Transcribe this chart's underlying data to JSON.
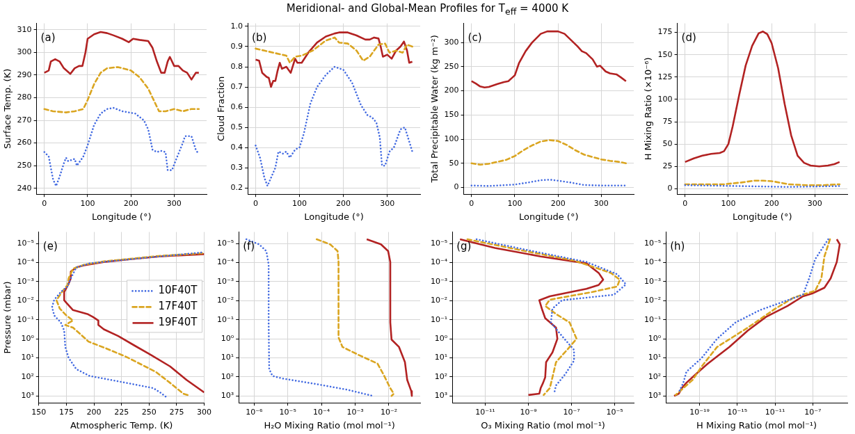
{
  "chart_data": [
    {
      "type": "line",
      "xlabel": "Longitude (°)",
      "ylabel": "Surface Temp. (K)",
      "annotations": [
        "(a)"
      ],
      "xlim": [
        -18,
        375
      ],
      "xticks": [
        0,
        100,
        200,
        300
      ],
      "ylim": [
        237.4,
        312.8
      ],
      "yticks": [
        240,
        250,
        260,
        270,
        280,
        290,
        300,
        310
      ],
      "grid": true,
      "series": [
        {
          "color": "#4169e1",
          "line_style": "dotted",
          "x": [
            0,
            10,
            20,
            27,
            35,
            45,
            50,
            55,
            70,
            75,
            90,
            100,
            115,
            130,
            145,
            160,
            180,
            210,
            230,
            240,
            250,
            260,
            270,
            280,
            285,
            295,
            305,
            320,
            325,
            340,
            350,
            357
          ],
          "values": [
            256,
            254,
            244,
            241,
            245,
            251,
            253.5,
            252,
            253,
            250,
            254,
            259,
            268,
            273,
            275,
            275.5,
            274,
            273,
            270,
            266,
            257,
            256,
            256.5,
            256,
            248,
            248,
            253,
            260,
            263,
            263,
            257,
            255
          ]
        },
        {
          "color": "#daa520",
          "line_style": "dashed",
          "x": [
            0,
            20,
            50,
            70,
            90,
            100,
            115,
            130,
            145,
            170,
            200,
            220,
            240,
            255,
            265,
            280,
            300,
            320,
            340,
            357
          ],
          "values": [
            275,
            274,
            273.5,
            274,
            275,
            279,
            286,
            291,
            293,
            293.5,
            292,
            289,
            284,
            278,
            274,
            274,
            275,
            274,
            275,
            275
          ]
        },
        {
          "color": "#b22222",
          "line_style": "solid",
          "x": [
            0,
            10,
            15,
            25,
            35,
            45,
            60,
            70,
            80,
            88,
            95,
            100,
            115,
            130,
            145,
            160,
            180,
            195,
            205,
            220,
            240,
            250,
            260,
            270,
            278,
            285,
            290,
            300,
            310,
            320,
            330,
            340,
            350,
            357
          ],
          "values": [
            291,
            292,
            296,
            297,
            296,
            293,
            290.5,
            293,
            294,
            294,
            300,
            306,
            308,
            309,
            308.5,
            307.5,
            306,
            304.5,
            306,
            305.5,
            305,
            302,
            296,
            291,
            291,
            296,
            298,
            294,
            294,
            292,
            291,
            288,
            291,
            291
          ]
        }
      ]
    },
    {
      "type": "line",
      "title": "Meridional- and Global-Mean Profiles for T$_{eff}$ = 4000 K",
      "xlabel": "Longitude (°)",
      "ylabel": "Cloud Fraction",
      "annotations": [
        "(b)"
      ],
      "xlim": [
        -18,
        375
      ],
      "xticks": [
        0,
        100,
        200,
        300
      ],
      "ylim": [
        0.169,
        1.015
      ],
      "yticks": [
        {
          "value": 0.2,
          "label": "0.2"
        },
        {
          "value": 0.3,
          "label": "0.3"
        },
        {
          "value": 0.4,
          "label": "0.4"
        },
        {
          "value": 0.5,
          "label": "0.5"
        },
        {
          "value": 0.6,
          "label": "0.6"
        },
        {
          "value": 0.7,
          "label": "0.7"
        },
        {
          "value": 0.8,
          "label": "0.8"
        },
        {
          "value": 0.9,
          "label": "0.9"
        },
        {
          "value": 1,
          "label": "1.0"
        }
      ],
      "grid": true,
      "series": [
        {
          "color": "#4169e1",
          "line_style": "dotted",
          "x": [
            0,
            10,
            20,
            27,
            35,
            45,
            52,
            62,
            70,
            78,
            90,
            100,
            110,
            125,
            140,
            160,
            180,
            200,
            220,
            240,
            255,
            265,
            275,
            283,
            288,
            295,
            305,
            315,
            330,
            340,
            350,
            357
          ],
          "values": [
            0.41,
            0.35,
            0.25,
            0.21,
            0.25,
            0.3,
            0.38,
            0.37,
            0.38,
            0.35,
            0.39,
            0.4,
            0.47,
            0.62,
            0.7,
            0.76,
            0.8,
            0.785,
            0.72,
            0.61,
            0.56,
            0.55,
            0.525,
            0.45,
            0.31,
            0.31,
            0.38,
            0.4,
            0.49,
            0.5,
            0.43,
            0.38
          ]
        },
        {
          "color": "#daa520",
          "line_style": "dashed",
          "x": [
            0,
            20,
            40,
            60,
            70,
            78,
            90,
            105,
            130,
            160,
            180,
            190,
            210,
            230,
            245,
            260,
            280,
            295,
            305,
            320,
            335,
            345,
            357
          ],
          "values": [
            0.89,
            0.88,
            0.87,
            0.86,
            0.855,
            0.82,
            0.85,
            0.855,
            0.88,
            0.93,
            0.945,
            0.92,
            0.915,
            0.88,
            0.83,
            0.85,
            0.91,
            0.915,
            0.87,
            0.88,
            0.87,
            0.91,
            0.9
          ]
        },
        {
          "color": "#b22222",
          "line_style": "solid",
          "x": [
            0,
            8,
            15,
            25,
            30,
            35,
            40,
            45,
            50,
            55,
            60,
            70,
            80,
            90,
            95,
            105,
            120,
            140,
            160,
            180,
            190,
            210,
            230,
            250,
            260,
            270,
            280,
            285,
            290,
            300,
            310,
            320,
            330,
            338,
            345,
            350,
            357
          ],
          "values": [
            0.835,
            0.83,
            0.77,
            0.75,
            0.745,
            0.7,
            0.73,
            0.73,
            0.78,
            0.82,
            0.79,
            0.8,
            0.77,
            0.84,
            0.82,
            0.82,
            0.87,
            0.92,
            0.95,
            0.965,
            0.97,
            0.97,
            0.955,
            0.935,
            0.935,
            0.945,
            0.94,
            0.9,
            0.85,
            0.86,
            0.84,
            0.88,
            0.9,
            0.925,
            0.88,
            0.82,
            0.825
          ]
        }
      ]
    },
    {
      "type": "line",
      "xlabel": "Longitude (°)",
      "ylabel": "Total Precipitable Water (kg m⁻²)",
      "annotations": [
        "(c)"
      ],
      "xlim": [
        -18,
        375
      ],
      "xticks": [
        0,
        100,
        200,
        300
      ],
      "ylim": [
        -14,
        339.6
      ],
      "yticks": [
        0,
        50,
        100,
        150,
        200,
        250,
        300
      ],
      "grid": true,
      "series": [
        {
          "color": "#4169e1",
          "line_style": "dotted",
          "x": [
            0,
            40,
            80,
            100,
            130,
            160,
            180,
            200,
            230,
            260,
            300,
            357
          ],
          "values": [
            4,
            3,
            5,
            6,
            10,
            15,
            16,
            14,
            10,
            5,
            4,
            4
          ]
        },
        {
          "color": "#daa520",
          "line_style": "dashed",
          "x": [
            0,
            20,
            40,
            60,
            80,
            100,
            120,
            140,
            160,
            180,
            200,
            220,
            240,
            260,
            280,
            300,
            320,
            340,
            357
          ],
          "values": [
            50,
            47,
            49,
            53,
            57,
            65,
            77,
            87,
            95,
            98,
            96,
            88,
            77,
            68,
            63,
            58,
            55,
            53,
            50
          ]
        },
        {
          "color": "#b22222",
          "line_style": "solid",
          "x": [
            0,
            10,
            20,
            30,
            40,
            60,
            75,
            85,
            95,
            100,
            110,
            125,
            140,
            160,
            175,
            200,
            215,
            230,
            245,
            255,
            265,
            280,
            290,
            297,
            310,
            320,
            335,
            345,
            357
          ],
          "values": [
            220,
            215,
            209,
            207,
            208,
            214,
            218,
            220,
            228,
            232,
            258,
            282,
            300,
            318,
            323,
            323,
            318,
            305,
            292,
            282,
            278,
            265,
            250,
            252,
            240,
            236,
            234,
            228,
            220
          ]
        }
      ]
    },
    {
      "type": "line",
      "xlabel": "Longitude (°)",
      "ylabel": "H Mixing Ratio (×10⁻⁶)",
      "annotations": [
        "(d)"
      ],
      "xlim": [
        -18,
        375
      ],
      "xticks": [
        0,
        100,
        200,
        300
      ],
      "ylim": [
        -6.1,
        185.1
      ],
      "yticks": [
        0,
        25,
        50,
        75,
        100,
        125,
        150,
        175
      ],
      "grid": true,
      "series": [
        {
          "color": "#4169e1",
          "line_style": "dotted",
          "x": [
            0,
            60,
            120,
            180,
            240,
            300,
            357
          ],
          "values": [
            4,
            3.5,
            3,
            2.5,
            2,
            2.5,
            3
          ]
        },
        {
          "color": "#daa520",
          "line_style": "dashed",
          "x": [
            0,
            50,
            90,
            130,
            160,
            180,
            200,
            240,
            280,
            320,
            357
          ],
          "values": [
            5,
            5,
            5,
            7,
            9,
            9,
            8.5,
            5,
            4,
            4,
            5
          ]
        },
        {
          "color": "#b22222",
          "line_style": "solid",
          "x": [
            0,
            20,
            40,
            60,
            80,
            90,
            100,
            110,
            125,
            140,
            155,
            170,
            180,
            190,
            200,
            215,
            230,
            245,
            260,
            275,
            290,
            310,
            330,
            345,
            357
          ],
          "values": [
            30,
            34,
            37,
            39,
            40,
            42,
            50,
            70,
            105,
            138,
            160,
            174,
            176,
            173,
            163,
            135,
            95,
            60,
            37,
            29,
            26,
            25,
            26,
            27.5,
            30
          ]
        }
      ]
    },
    {
      "type": "line",
      "xlabel": "Atmospheric Temp. (K)",
      "ylabel": "Pressure (mbar)",
      "annotations": [
        "(e)"
      ],
      "log": "y",
      "legend": "center right",
      "xlim": [
        150,
        300
      ],
      "xticks": [
        150,
        175,
        200,
        225,
        250,
        275,
        300
      ],
      "ylim": [
        2300,
        2.5e-06
      ],
      "yticks": [
        {
          "value": 1e-05,
          "label": "10⁻⁵"
        },
        {
          "value": 0.0001,
          "label": "10⁻⁴"
        },
        {
          "value": 0.001,
          "label": "10⁻³"
        },
        {
          "value": 0.01,
          "label": "10⁻²"
        },
        {
          "value": 0.1,
          "label": "10⁻¹"
        },
        {
          "value": 1,
          "label": "10⁰"
        },
        {
          "value": 10,
          "label": "10¹"
        },
        {
          "value": 100,
          "label": "10²"
        },
        {
          "value": 1000,
          "label": "10³"
        }
      ],
      "grid": true,
      "series": [
        {
          "name": "10F40T",
          "color": "#4169e1",
          "line_style": "dotted",
          "x": [
            265,
            260,
            254,
            229,
            209,
            196,
            184,
            177,
            174,
            173,
            170,
            164,
            162,
            164,
            170,
            176,
            179,
            184,
            196,
            234,
            300
          ],
          "values": [
            1070,
            650,
            390,
            204,
            123,
            89,
            39,
            10,
            2.7,
            0.37,
            0.14,
            0.06,
            0.022,
            0.0089,
            0.0035,
            0.0018,
            0.00068,
            0.00018,
            0.00011,
            6.6e-05,
            2.9e-05
          ]
        },
        {
          "name": "17F40T",
          "color": "#daa520",
          "line_style": "dashed",
          "x": [
            285,
            281,
            269,
            256,
            229,
            211,
            195,
            191,
            181,
            174,
            181,
            175,
            169,
            166,
            171,
            176,
            177,
            181,
            191,
            209,
            259,
            300
          ],
          "values": [
            890,
            760,
            204,
            54,
            8.7,
            3.2,
            1.4,
            0.85,
            0.26,
            0.19,
            0.11,
            0.06,
            0.026,
            0.0095,
            0.0035,
            0.0015,
            0.00068,
            0.00021,
            0.00013,
            8.7e-05,
            4.5e-05,
            3.2e-05
          ]
        },
        {
          "name": "19F40T",
          "color": "#b22222",
          "line_style": "solid",
          "x": [
            300,
            284,
            269,
            252,
            237,
            222,
            209,
            204,
            204,
            199,
            194,
            181,
            175,
            173,
            173,
            177,
            179,
            179,
            184,
            191,
            209,
            234,
            259,
            300
          ],
          "values": [
            650,
            145,
            28,
            7.2,
            2.3,
            0.72,
            0.32,
            0.19,
            0.11,
            0.071,
            0.05,
            0.031,
            0.013,
            0.0095,
            0.0035,
            0.0013,
            0.00068,
            0.0003,
            0.00018,
            0.00014,
            9.3e-05,
            6.6e-05,
            4.8e-05,
            3.6e-05
          ]
        }
      ]
    },
    {
      "type": "line",
      "xlabel": "H₂O Mixing Ratio (mol mol⁻¹)",
      "annotations": [
        "(f)"
      ],
      "log": "xy",
      "xlim": [
        3.5e-07,
        0.085
      ],
      "xticks": [
        {
          "value": 1e-06,
          "label": "10⁻⁶"
        },
        {
          "value": 1e-05,
          "label": "10⁻⁵"
        },
        {
          "value": 0.0001,
          "label": "10⁻⁴"
        },
        {
          "value": 0.001,
          "label": "10⁻³"
        },
        {
          "value": 0.01,
          "label": "10⁻²"
        }
      ],
      "ylim": [
        2300,
        2.5e-06
      ],
      "yticks": [
        {
          "value": 1e-05,
          "label": "10⁻⁵"
        },
        {
          "value": 0.0001,
          "label": "10⁻⁴"
        },
        {
          "value": 0.001,
          "label": "10⁻³"
        },
        {
          "value": 0.01,
          "label": "10⁻²"
        },
        {
          "value": 0.1,
          "label": "10⁻¹"
        },
        {
          "value": 1,
          "label": "10⁰"
        },
        {
          "value": 10,
          "label": "10¹"
        },
        {
          "value": 100,
          "label": "10²"
        },
        {
          "value": 1000,
          "label": "10³"
        }
      ],
      "grid": true,
      "series": [
        {
          "color": "#4169e1",
          "line_style": "dotted",
          "x": [
            5.9e-07,
            1.4e-06,
            2.3e-06,
            2.7e-06,
            2.7e-06,
            2.8e-06,
            3.5e-06,
            7.2e-06,
            7.2e-05,
            0.00058,
            0.0034
          ],
          "values": [
            6e-06,
            1.1e-05,
            2.5e-05,
            0.00013,
            0.14,
            39,
            89,
            123,
            240,
            470,
            1000
          ]
        },
        {
          "color": "#daa520",
          "line_style": "dashed",
          "x": [
            7.2e-05,
            0.00018,
            0.0003,
            0.00032,
            0.00032,
            0.00042,
            0.0013,
            0.0046,
            0.0069,
            0.011,
            0.014,
            0.012
          ],
          "values": [
            6e-06,
            1.1e-05,
            2.5e-05,
            9.3e-05,
            0.85,
            2.7,
            7.2,
            20,
            74,
            390,
            760,
            1000
          ]
        },
        {
          "color": "#b22222",
          "line_style": "solid",
          "x": [
            0.0022,
            0.0058,
            0.0095,
            0.011,
            0.011,
            0.012,
            0.02,
            0.03,
            0.035,
            0.046,
            0.048
          ],
          "values": [
            6e-06,
            1.1e-05,
            2.5e-05,
            9.3e-05,
            0.14,
            1.1,
            2.7,
            17,
            145,
            550,
            1000
          ]
        }
      ]
    },
    {
      "type": "line",
      "xlabel": "O₃ Mixing Ratio (mol mol⁻¹)",
      "annotations": [
        "(g)"
      ],
      "log": "xy",
      "xlim": [
        3.3e-13,
        7.6e-05
      ],
      "xticks": [
        {
          "value": 1e-11,
          "label": "10⁻¹¹"
        },
        {
          "value": 1e-09,
          "label": "10⁻⁹"
        },
        {
          "value": 1e-07,
          "label": "10⁻⁷"
        },
        {
          "value": 1e-05,
          "label": "10⁻⁵"
        }
      ],
      "ylim": [
        2300,
        2.5e-06
      ],
      "yticks": [
        {
          "value": 1e-05,
          "label": "10⁻⁵"
        },
        {
          "value": 0.0001,
          "label": "10⁻⁴"
        },
        {
          "value": 0.001,
          "label": "10⁻³"
        },
        {
          "value": 0.01,
          "label": "10⁻²"
        },
        {
          "value": 0.1,
          "label": "10⁻¹"
        },
        {
          "value": 1,
          "label": "10⁰"
        },
        {
          "value": 10,
          "label": "10¹"
        },
        {
          "value": 100,
          "label": "10²"
        },
        {
          "value": 1000,
          "label": "10³"
        }
      ],
      "grid": true,
      "series": [
        {
          "color": "#4169e1",
          "line_style": "dotted",
          "x": [
            4e-12,
            7.2e-10,
            4.9e-07,
            1.3e-05,
            3.3e-05,
            9.1e-06,
            3.6e-08,
            1.3e-08,
            1.1e-08,
            3.6e-08,
            1.3e-07,
            1.3e-07,
            5e-08,
            1.9e-08,
            1.6e-08
          ],
          "values": [
            6e-06,
            2.1e-05,
            9.3e-05,
            0.00041,
            0.0014,
            0.0049,
            0.0095,
            0.026,
            0.14,
            0.72,
            3.8,
            14,
            74,
            280,
            650
          ]
        },
        {
          "color": "#daa520",
          "line_style": "dashed",
          "x": [
            1.5e-12,
            7.2e-10,
            1.3e-07,
            6.6e-06,
            1.7e-05,
            1.3e-05,
            9.3e-07,
            9.8e-09,
            6e-09,
            1.9e-08,
            8.1e-08,
            1.7e-07,
            8.1e-08,
            1.9e-08,
            1.3e-08,
            9.8e-09,
            5.1e-09
          ],
          "values": [
            6e-06,
            2.5e-05,
            7.8e-05,
            0.00035,
            0.00079,
            0.0018,
            0.0035,
            0.0089,
            0.019,
            0.05,
            0.14,
            1,
            2.7,
            17,
            105,
            390,
            890
          ]
        },
        {
          "color": "#b22222",
          "line_style": "solid",
          "x": [
            6.8e-13,
            2.8e-11,
            3.7e-09,
            4.9e-07,
            1.8e-06,
            2.9e-06,
            1.8e-06,
            4.9e-07,
            9.8e-09,
            3.2e-09,
            4.4e-09,
            6e-09,
            1.9e-08,
            2.2e-08,
            1.3e-08,
            6.6e-09,
            6e-09,
            4.8e-09,
            3.7e-09,
            3.2e-09,
            1e-09
          ],
          "values": [
            6e-06,
            1.7e-05,
            4.8e-05,
            0.00011,
            0.00035,
            0.00079,
            0.0015,
            0.0024,
            0.0059,
            0.0095,
            0.031,
            0.083,
            0.26,
            1,
            5.2,
            17,
            105,
            204,
            390,
            760,
            890
          ]
        }
      ]
    },
    {
      "type": "line",
      "xlabel": "H Mixing Ratio (mol mol⁻¹)",
      "annotations": [
        "(h)"
      ],
      "log": "xy",
      "xlim": [
        2.7e-23,
        0.00046
      ],
      "xticks": [
        {
          "value": 1e-19,
          "label": "10⁻¹⁹"
        },
        {
          "value": 1e-15,
          "label": "10⁻¹⁵"
        },
        {
          "value": 1e-11,
          "label": "10⁻¹¹"
        },
        {
          "value": 1e-07,
          "label": "10⁻⁷"
        }
      ],
      "ylim": [
        2300,
        2.5e-06
      ],
      "yticks": [
        {
          "value": 1e-05,
          "label": "10⁻⁵"
        },
        {
          "value": 0.0001,
          "label": "10⁻⁴"
        },
        {
          "value": 0.001,
          "label": "10⁻³"
        },
        {
          "value": 0.01,
          "label": "10⁻²"
        },
        {
          "value": 0.1,
          "label": "10⁻¹"
        },
        {
          "value": 1,
          "label": "10⁰"
        },
        {
          "value": 10,
          "label": "10¹"
        },
        {
          "value": 100,
          "label": "10²"
        },
        {
          "value": 1000,
          "label": "10³"
        }
      ],
      "grid": true,
      "series": [
        {
          "color": "#4169e1",
          "line_style": "dotted",
          "x": [
            4.3e-06,
            1.8e-07,
            4.1e-08,
            9.1e-09,
            2.1e-10,
            2.6e-13,
            6.3e-16,
            7.1e-18,
            1.7e-19,
            4e-21,
            1.9e-21,
            6.2e-22
          ],
          "values": [
            6e-06,
            6.6e-05,
            0.00068,
            0.0049,
            0.0095,
            0.031,
            0.14,
            1,
            10,
            54,
            204,
            650
          ]
        },
        {
          "color": "#daa520",
          "line_style": "dashed",
          "x": [
            6.6e-06,
            1.7e-06,
            8.1e-07,
            1.8e-07,
            9.5e-10,
            1.1e-11,
            1.3e-14,
            7.1e-18,
            1.7e-19,
            1.8e-20,
            1.9e-21,
            2.9e-22
          ],
          "values": [
            6e-06,
            4.8e-05,
            0.00068,
            0.003,
            0.0069,
            0.026,
            0.26,
            2.7,
            28,
            145,
            390,
            890
          ]
        },
        {
          "color": "#b22222",
          "line_style": "solid",
          "x": [
            3.5e-05,
            7.2e-05,
            3.5e-05,
            7.8e-06,
            1.7e-06,
            8.5e-08,
            9.1e-09,
            2.1e-10,
            1.1e-12,
            1.3e-14,
            1.4e-16,
            7.6e-19,
            3.8e-20,
            4e-21,
            1.3e-21,
            6.2e-22,
            2e-22
          ],
          "values": [
            6e-06,
            1.1e-05,
            9.3e-05,
            0.00068,
            0.0021,
            0.0042,
            0.0059,
            0.019,
            0.071,
            0.37,
            2.7,
            20,
            74,
            204,
            390,
            760,
            1000
          ]
        }
      ]
    }
  ]
}
